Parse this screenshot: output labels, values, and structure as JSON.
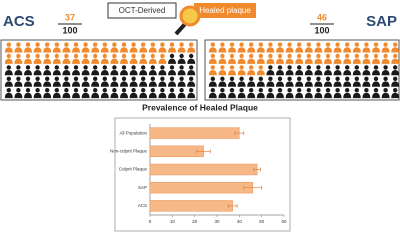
{
  "panels": [
    {
      "name": "ACS",
      "numerator": 37,
      "denominator": 100
    },
    {
      "name": "SAP",
      "numerator": 46,
      "denominator": 100
    }
  ],
  "labels": {
    "method": "OCT-Derived",
    "finding": "Healed plaque"
  },
  "chart_data": {
    "type": "bar",
    "orientation": "horizontal",
    "title": "Prevalence of Healed Plaque",
    "categories": [
      "All Population",
      "Non-culprit Plaque",
      "Culprit Plaque",
      "SAP",
      "ACS"
    ],
    "values": [
      40,
      24,
      48,
      46,
      37
    ],
    "errors": [
      2,
      3,
      1.5,
      4,
      2
    ],
    "color": "#f6b887",
    "xlim": [
      0,
      60
    ],
    "xticks": [
      0,
      10,
      20,
      30,
      40,
      50,
      60
    ]
  }
}
